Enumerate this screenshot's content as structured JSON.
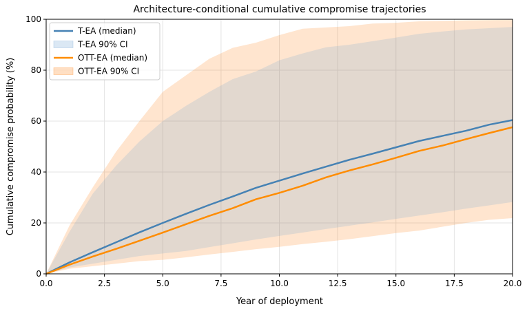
{
  "chart_data": {
    "type": "line",
    "title": "Architecture-conditional cumulative compromise trajectories",
    "xlabel": "Year of deployment",
    "ylabel": "Cumulative compromise probability (%)",
    "xlim": [
      0,
      20
    ],
    "ylim": [
      0,
      100
    ],
    "xticks": [
      0,
      2.5,
      5,
      7.5,
      10,
      12.5,
      15,
      17.5,
      20
    ],
    "xtick_labels": [
      "0.0",
      "2.5",
      "5.0",
      "7.5",
      "10.0",
      "12.5",
      "15.0",
      "17.5",
      "20.0"
    ],
    "yticks": [
      0,
      20,
      40,
      60,
      80,
      100
    ],
    "ytick_labels": [
      "0",
      "20",
      "40",
      "60",
      "80",
      "100"
    ],
    "grid": true,
    "legend_position": "top-left",
    "x": [
      0,
      1,
      2,
      3,
      4,
      5,
      6,
      7,
      8,
      9,
      10,
      11,
      12,
      13,
      14,
      15,
      16,
      17,
      18,
      19,
      20
    ],
    "series": [
      {
        "name": "OTT-EA 90% CI",
        "kind": "band",
        "color": "#ff7f0e",
        "upper": [
          0,
          19,
          34,
          48,
          60,
          71.5,
          78,
          84.5,
          88.8,
          90.8,
          93.8,
          96.3,
          96.8,
          97.3,
          98.3,
          98.6,
          99.2,
          99.4,
          99.6,
          99.7,
          99.8
        ],
        "lower": [
          0,
          2,
          3,
          4,
          5,
          5.5,
          6.5,
          7.6,
          8.6,
          9.7,
          10.6,
          11.7,
          12.6,
          13.6,
          14.8,
          16,
          17,
          18.5,
          20,
          21.2,
          21.9
        ]
      },
      {
        "name": "T-EA 90% CI",
        "kind": "band",
        "color": "#6fa3d2",
        "upper": [
          0,
          16.5,
          31.5,
          42.5,
          52,
          60,
          66,
          71.5,
          76.5,
          79.5,
          83.9,
          86.6,
          89,
          90,
          91.4,
          92.8,
          94.3,
          95.2,
          96,
          96.5,
          97
        ],
        "lower": [
          0,
          2.5,
          4,
          5.5,
          7,
          8,
          9,
          10.5,
          12,
          13.5,
          14.9,
          16.2,
          17.6,
          18.9,
          20.2,
          21.6,
          22.9,
          24.2,
          25.6,
          26.9,
          28.2
        ]
      },
      {
        "name": "T-EA (median)",
        "kind": "line",
        "color": "#4682b4",
        "values": [
          0,
          4.5,
          8.5,
          12.4,
          16.3,
          20,
          23.6,
          27.1,
          30.4,
          33.8,
          36.6,
          39.4,
          42.1,
          44.8,
          47.2,
          49.7,
          52.2,
          54.2,
          56.2,
          58.6,
          60.4
        ]
      },
      {
        "name": "OTT-EA (median)",
        "kind": "line",
        "color": "#ff8c00",
        "values": [
          0,
          3.6,
          6.8,
          9.8,
          13,
          16.2,
          19.5,
          22.8,
          25.8,
          29.3,
          31.8,
          34.6,
          37.9,
          40.6,
          43,
          45.6,
          48.3,
          50.4,
          52.9,
          55.3,
          57.6
        ]
      }
    ],
    "legend": [
      {
        "label": "T-EA (median)",
        "kind": "line",
        "color": "#4682b4"
      },
      {
        "label": "T-EA 90% CI",
        "kind": "band",
        "color": "#6fa3d2"
      },
      {
        "label": "OTT-EA (median)",
        "kind": "line",
        "color": "#ff8c00"
      },
      {
        "label": "OTT-EA 90% CI",
        "kind": "band",
        "color": "#ff7f0e"
      }
    ]
  }
}
